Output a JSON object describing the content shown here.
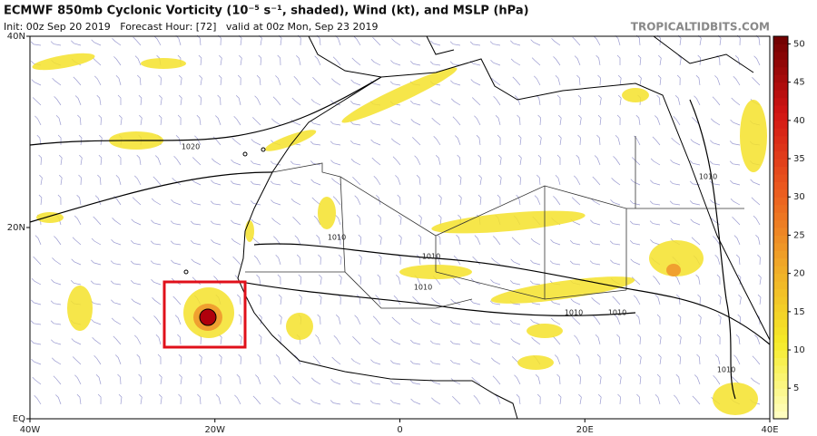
{
  "header": {
    "title": "ECMWF 850mb Cyclonic Vorticity (10⁻⁵ s⁻¹, shaded), Wind (kt), and MSLP (hPa)",
    "subtitle": "Init: 00z Sep 20 2019   Forecast Hour: [72]   valid at 00z Mon, Sep 23 2019",
    "credit": "TROPICALTIDBITS.COM"
  },
  "map": {
    "lonlim": [
      -40,
      40
    ],
    "latlim": [
      0,
      40
    ],
    "lon_ticks": [
      {
        "value": -40,
        "label": "40W"
      },
      {
        "value": -20,
        "label": "20W"
      },
      0,
      {
        "value": 20,
        "label": "20E"
      },
      {
        "value": 40,
        "label": "40E"
      }
    ],
    "lat_ticks": [
      {
        "value": 0,
        "label": "EQ"
      },
      {
        "value": 20,
        "label": "20N"
      },
      {
        "value": 40,
        "label": "40N"
      }
    ],
    "contour_labels": [
      "1020",
      "1010",
      "1010",
      "1010",
      "1010",
      "1010",
      "1010",
      "1010"
    ]
  },
  "colorbar": {
    "lim": [
      1,
      51
    ],
    "ticks": [
      5,
      10,
      15,
      20,
      25,
      30,
      35,
      40,
      45,
      50
    ]
  }
}
